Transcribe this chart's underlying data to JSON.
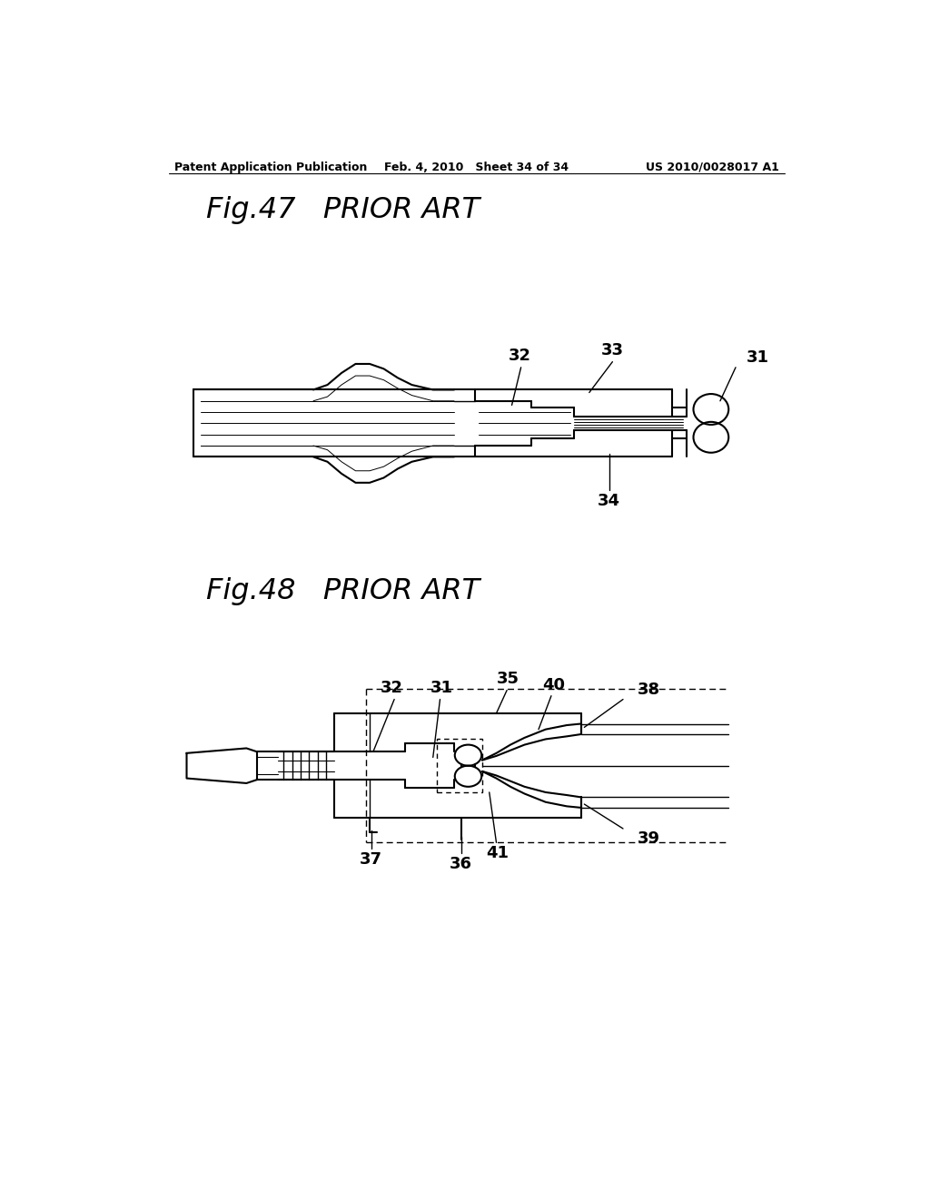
{
  "bg_color": "#ffffff",
  "header_left": "Patent Application Publication",
  "header_center": "Feb. 4, 2010   Sheet 34 of 34",
  "header_right": "US 2010/0028017 A1",
  "fig47_title": "Fig.47   PRIOR ART",
  "fig48_title": "Fig.48   PRIOR ART"
}
